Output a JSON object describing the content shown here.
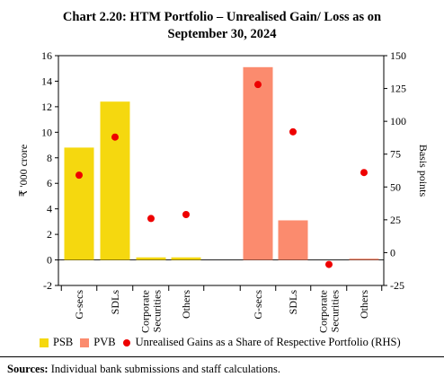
{
  "title_line1": "Chart 2.20: HTM Portfolio – Unrealised Gain/ Loss as on",
  "title_line2": "September 30, 2024",
  "sources_label": "Sources:",
  "sources_text": "Individual bank submissions and staff calculations.",
  "chart_data": {
    "type": "bar",
    "title": "Chart 2.20: HTM Portfolio – Unrealised Gain/ Loss as on September 30, 2024",
    "ylabel_left": "₹ '000 crore",
    "ylabel_right": "Basis points",
    "ylim_left": [
      -2,
      16
    ],
    "ylim_right": [
      -25,
      150
    ],
    "yticks_left": [
      "-2",
      "0",
      "2",
      "4",
      "6",
      "8",
      "10",
      "12",
      "14",
      "16"
    ],
    "yticks_right": [
      "-25",
      "0",
      "25",
      "50",
      "75",
      "100",
      "125",
      "150"
    ],
    "colors": {
      "psb": "#f5d80f",
      "pvb": "#fb8b6e",
      "dot": "#ee0000"
    },
    "groups": [
      {
        "name": "PSB",
        "categories": [
          "G-secs",
          "SDLs",
          "Corporate\nSecurities",
          "Others"
        ],
        "bar_values": [
          8.8,
          12.4,
          0.2,
          0.2
        ],
        "rhs_values": [
          59,
          88,
          26,
          29
        ]
      },
      {
        "name": "PVB",
        "categories": [
          "G-secs",
          "SDLs",
          "Corporate\nSecurities",
          "Others"
        ],
        "bar_values": [
          15.1,
          3.1,
          0.0,
          0.1
        ],
        "rhs_values": [
          128,
          92,
          -9,
          61
        ]
      }
    ],
    "legend": [
      {
        "label": "PSB",
        "kind": "bar",
        "color": "#f5d80f"
      },
      {
        "label": "PVB",
        "kind": "bar",
        "color": "#fb8b6e"
      },
      {
        "label": "Unrealised Gains as a Share of  Respective Portfolio (RHS)",
        "kind": "dot",
        "color": "#ee0000"
      }
    ],
    "grid": false,
    "legend_position": "bottom"
  }
}
